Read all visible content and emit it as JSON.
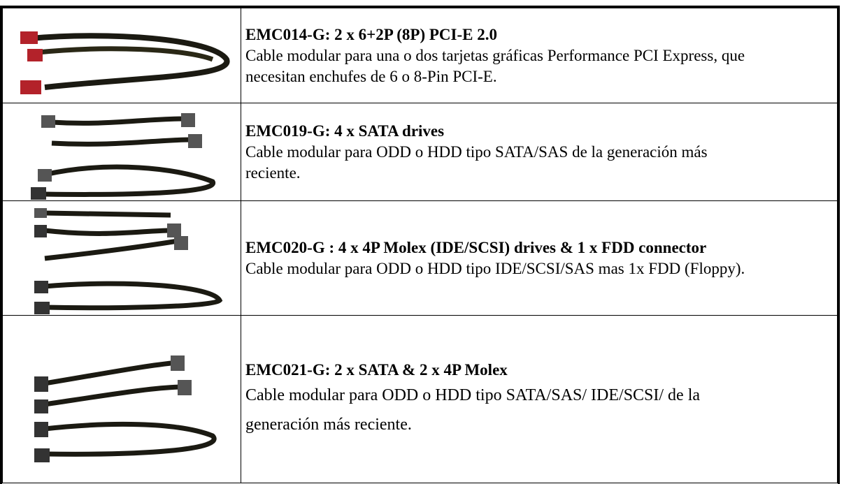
{
  "table": {
    "rows": [
      {
        "title": "EMC014-G: 2 x 6+2P (8P) PCI-E 2.0",
        "description": "Cable modular para una o dos tarjetas gráficas Performance PCI Express, que necesitan enchufes de 6 o 8-Pin PCI-E."
      },
      {
        "title": "EMC019-G: 4 x SATA drives",
        "description": "Cable modular para ODD o HDD tipo SATA/SAS de la generación más reciente."
      },
      {
        "title": "EMC020-G : 4 x 4P Molex (IDE/SCSI) drives & 1 x FDD connector",
        "description": "Cable modular para ODD o HDD tipo IDE/SCSI/SAS mas 1x FDD (Floppy)."
      },
      {
        "title": "EMC021-G: 2 x SATA & 2 x 4P Molex",
        "description": "Cable modular para ODD o HDD tipo SATA/SAS/ IDE/SCSI/ de la generación más reciente."
      }
    ]
  }
}
